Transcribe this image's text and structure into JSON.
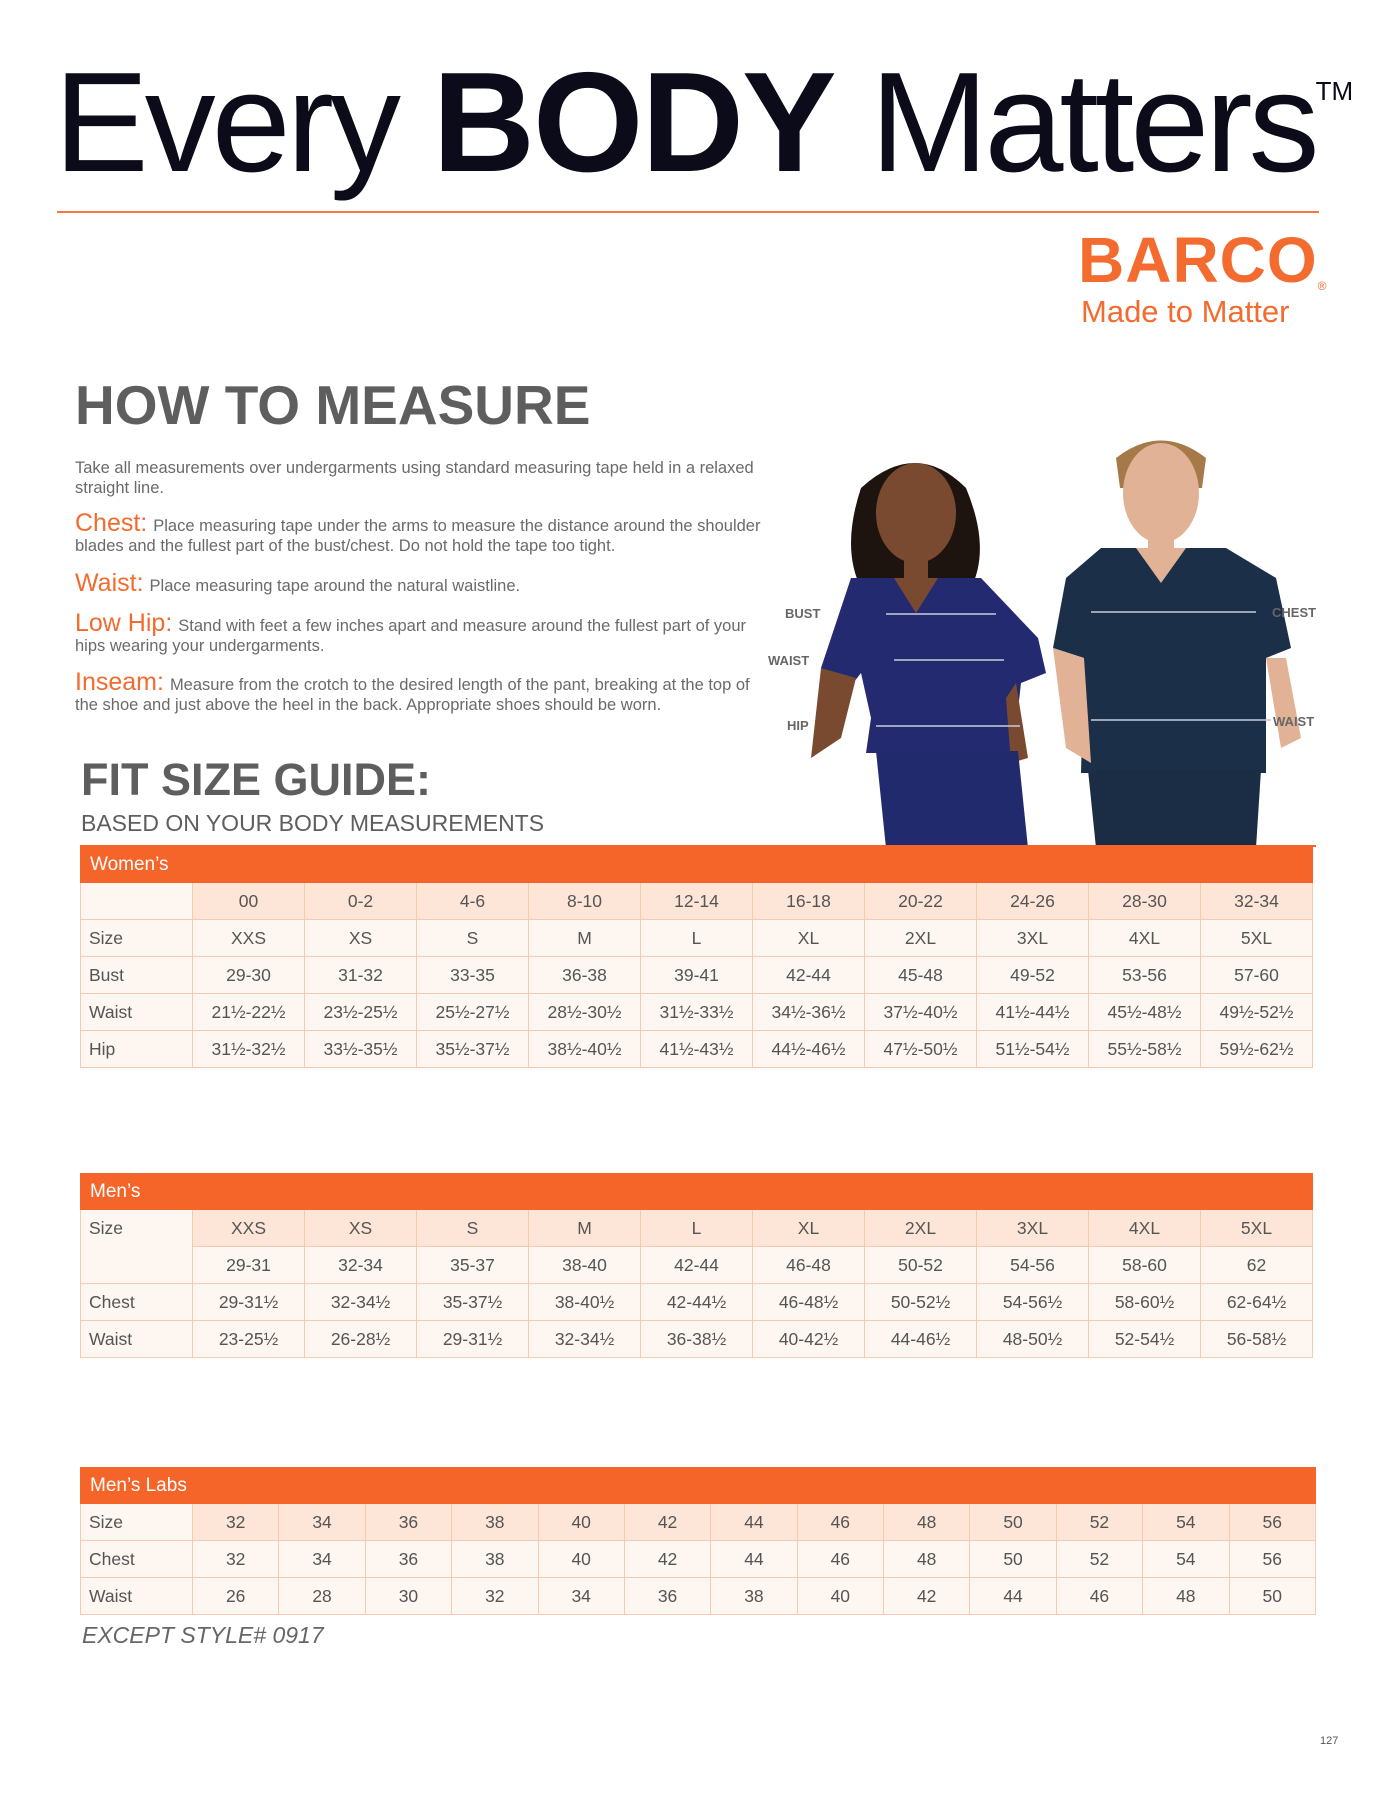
{
  "header": {
    "title_pre": "Every",
    "title_bold": "BODY",
    "title_post": "Matters",
    "trademark": "TM",
    "brand": "BARCO",
    "brand_mark": "®",
    "tagline": "Made to Matter",
    "colors": {
      "accent": "#f5652a",
      "title": "#0b0b1a",
      "heading": "#5e5e5e"
    }
  },
  "how_to_measure": {
    "heading": "HOW TO MEASURE",
    "intro": "Take all measurements over undergarments using standard measuring tape held in a relaxed straight line.",
    "items": [
      {
        "label": "Chest:",
        "text": "Place measuring tape under the arms to measure the distance around the shoulder blades and the fullest part of the bust/chest. Do not hold the tape too tight."
      },
      {
        "label": "Waist:",
        "text": "Place measuring tape around the natural waistline."
      },
      {
        "label": "Low Hip:",
        "text": "Stand with feet a few inches apart and measure around the fullest part of your hips wearing your undergarments."
      },
      {
        "label": "Inseam:",
        "text": "Measure from the crotch to the desired length of the pant, breaking at the top of the shoe and just above the heel in the back. Appropriate shoes should be worn."
      }
    ]
  },
  "photo": {
    "women_labels": [
      "BUST",
      "WAIST",
      "HIP"
    ],
    "men_labels": [
      "CHEST",
      "WAIST"
    ]
  },
  "fit_guide": {
    "heading": "FIT SIZE GUIDE:",
    "subheading": "BASED ON YOUR BODY MEASUREMENTS"
  },
  "tables": [
    {
      "title": "Women’s",
      "rows": [
        {
          "label": "",
          "cells": [
            "00",
            "0-2",
            "4-6",
            "8-10",
            "12-14",
            "16-18",
            "20-22",
            "24-26",
            "28-30",
            "32-34"
          ]
        },
        {
          "label": "Size",
          "cells": [
            "XXS",
            "XS",
            "S",
            "M",
            "L",
            "XL",
            "2XL",
            "3XL",
            "4XL",
            "5XL"
          ]
        },
        {
          "label": "Bust",
          "cells": [
            "29-30",
            "31-32",
            "33-35",
            "36-38",
            "39-41",
            "42-44",
            "45-48",
            "49-52",
            "53-56",
            "57-60"
          ]
        },
        {
          "label": "Waist",
          "cells": [
            "21½-22½",
            "23½-25½",
            "25½-27½",
            "28½-30½",
            "31½-33½",
            "34½-36½",
            "37½-40½",
            "41½-44½",
            "45½-48½",
            "49½-52½"
          ]
        },
        {
          "label": "Hip",
          "cells": [
            "31½-32½",
            "33½-35½",
            "35½-37½",
            "38½-40½",
            "41½-43½",
            "44½-46½",
            "47½-50½",
            "51½-54½",
            "55½-58½",
            "59½-62½"
          ]
        }
      ]
    },
    {
      "title": "Men’s",
      "rows": [
        {
          "label": "Size",
          "cells": [
            "XXS",
            "XS",
            "S",
            "M",
            "L",
            "XL",
            "2XL",
            "3XL",
            "4XL",
            "5XL"
          ]
        },
        {
          "label": "",
          "cells": [
            "29-31",
            "32-34",
            "35-37",
            "38-40",
            "42-44",
            "46-48",
            "50-52",
            "54-56",
            "58-60",
            "62"
          ]
        },
        {
          "label": "Chest",
          "cells": [
            "29-31½",
            "32-34½",
            "35-37½",
            "38-40½",
            "42-44½",
            "46-48½",
            "50-52½",
            "54-56½",
            "58-60½",
            "62-64½"
          ]
        },
        {
          "label": "Waist",
          "cells": [
            "23-25½",
            "26-28½",
            "29-31½",
            "32-34½",
            "36-38½",
            "40-42½",
            "44-46½",
            "48-50½",
            "52-54½",
            "56-58½"
          ]
        }
      ]
    },
    {
      "title": "Men’s Labs",
      "rows": [
        {
          "label": "Size",
          "cells": [
            "32",
            "34",
            "36",
            "38",
            "40",
            "42",
            "44",
            "46",
            "48",
            "50",
            "52",
            "54",
            "56"
          ]
        },
        {
          "label": "Chest",
          "cells": [
            "32",
            "34",
            "36",
            "38",
            "40",
            "42",
            "44",
            "46",
            "48",
            "50",
            "52",
            "54",
            "56"
          ]
        },
        {
          "label": "Waist",
          "cells": [
            "26",
            "28",
            "30",
            "32",
            "34",
            "36",
            "38",
            "40",
            "42",
            "44",
            "46",
            "48",
            "50"
          ]
        }
      ]
    }
  ],
  "footnote": "EXCEPT STYLE# 0917",
  "page_number": "127"
}
